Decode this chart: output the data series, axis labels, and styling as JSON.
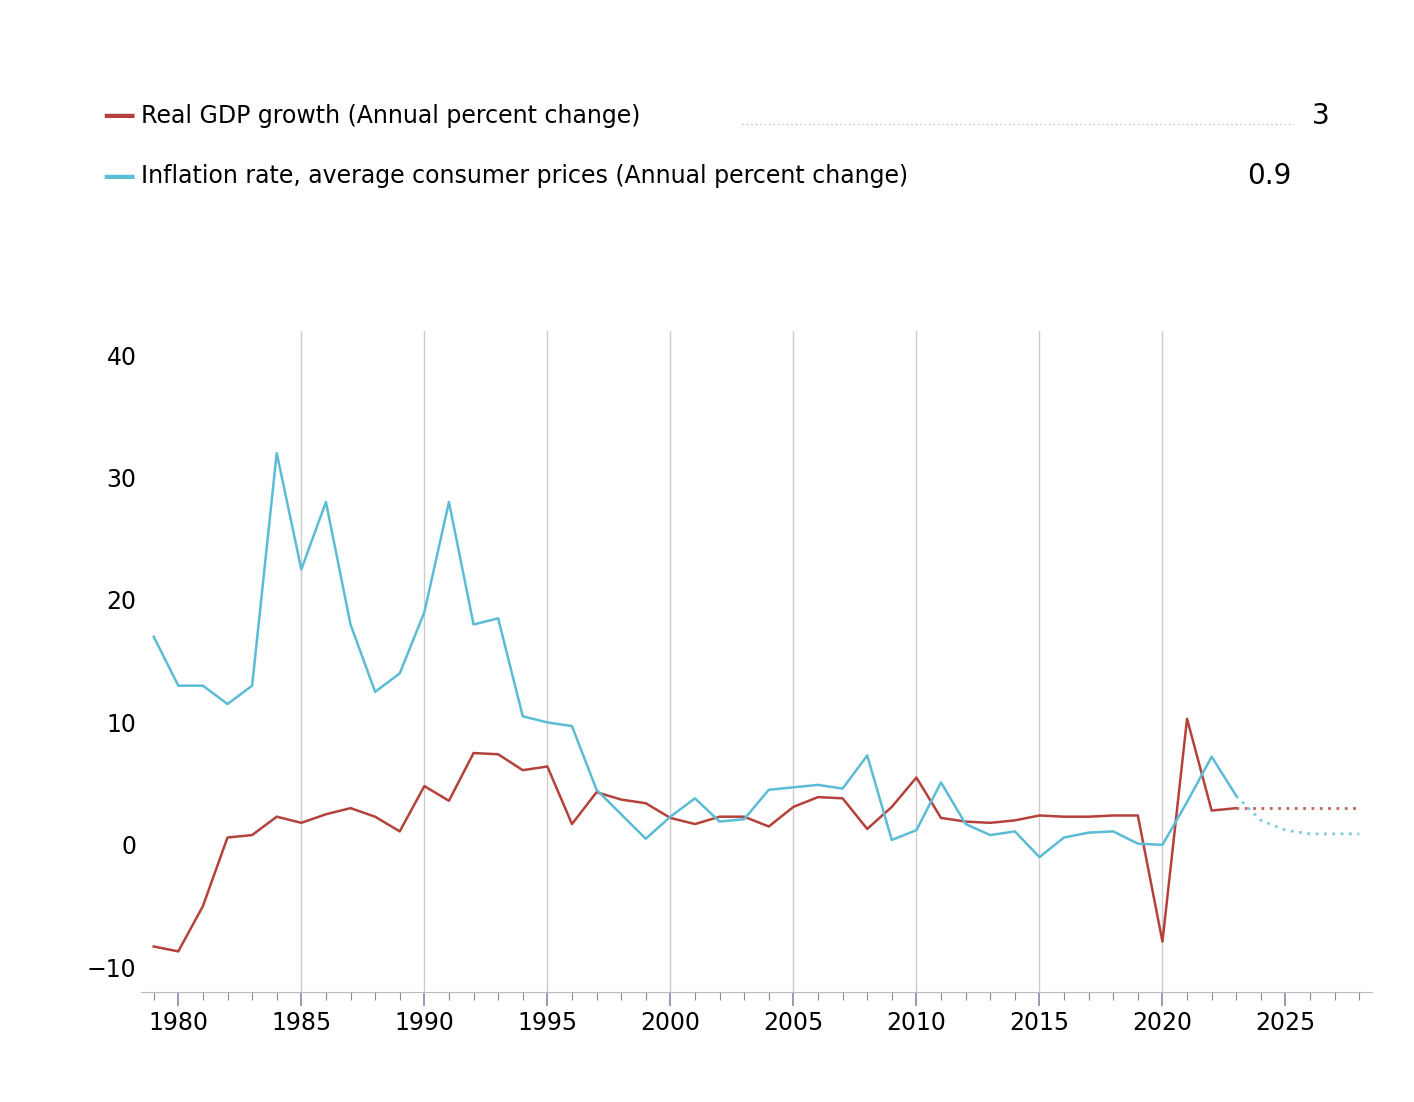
{
  "gdp_years": [
    1979,
    1980,
    1981,
    1982,
    1983,
    1984,
    1985,
    1986,
    1987,
    1988,
    1989,
    1990,
    1991,
    1992,
    1993,
    1994,
    1995,
    1996,
    1997,
    1998,
    1999,
    2000,
    2001,
    2002,
    2003,
    2004,
    2005,
    2006,
    2007,
    2008,
    2009,
    2010,
    2011,
    2012,
    2013,
    2014,
    2015,
    2016,
    2017,
    2018,
    2019,
    2020,
    2021,
    2022,
    2023
  ],
  "gdp_values": [
    -8.3,
    -8.7,
    -5.0,
    0.6,
    0.8,
    2.3,
    1.8,
    2.5,
    3.0,
    2.3,
    1.1,
    4.8,
    3.6,
    7.5,
    7.4,
    6.1,
    6.4,
    1.7,
    4.3,
    3.7,
    3.4,
    2.2,
    1.7,
    2.3,
    2.3,
    1.5,
    3.1,
    3.9,
    3.8,
    1.3,
    3.1,
    5.5,
    2.2,
    1.9,
    1.8,
    2.0,
    2.4,
    2.3,
    2.3,
    2.4,
    2.4,
    -7.9,
    10.3,
    2.8,
    3.0
  ],
  "gdp_forecast_years": [
    2023,
    2024,
    2025,
    2026,
    2027,
    2028
  ],
  "gdp_forecast_values": [
    3.0,
    3.0,
    3.0,
    3.0,
    3.0,
    3.0
  ],
  "inf_years": [
    1979,
    1980,
    1981,
    1982,
    1983,
    1984,
    1985,
    1986,
    1987,
    1988,
    1989,
    1990,
    1991,
    1992,
    1993,
    1994,
    1995,
    1996,
    1997,
    1998,
    1999,
    2000,
    2001,
    2002,
    2003,
    2004,
    2005,
    2006,
    2007,
    2008,
    2009,
    2010,
    2011,
    2012,
    2013,
    2014,
    2015,
    2016,
    2017,
    2018,
    2019,
    2020,
    2021,
    2022,
    2023
  ],
  "inf_values": [
    17.0,
    13.0,
    13.0,
    11.5,
    13.0,
    32.0,
    22.5,
    28.0,
    18.0,
    12.5,
    14.0,
    19.0,
    28.0,
    18.0,
    18.5,
    10.5,
    10.0,
    9.7,
    4.5,
    2.5,
    0.5,
    2.3,
    3.8,
    1.9,
    2.1,
    4.5,
    4.7,
    4.9,
    4.6,
    7.3,
    0.4,
    1.2,
    5.1,
    1.7,
    0.8,
    1.1,
    -1.0,
    0.6,
    1.0,
    1.1,
    0.1,
    0.0,
    3.5,
    7.2,
    4.0
  ],
  "inf_forecast_years": [
    2023,
    2024,
    2025,
    2026,
    2027,
    2028
  ],
  "inf_forecast_values": [
    4.0,
    2.0,
    1.2,
    0.9,
    0.9,
    0.9
  ],
  "gdp_color": "#b5413b",
  "inf_color": "#5bbcd6",
  "forecast_dotted_color_gdp": "#c0655e",
  "forecast_dotted_color_inf": "#7ecae0",
  "vline_color": "#cccccc",
  "vline_years": [
    1985,
    1990,
    1995,
    2000,
    2005,
    2010,
    2015,
    2020
  ],
  "legend_label_gdp": "Real GDP growth (Annual percent change)",
  "legend_label_inf": "Inflation rate, average consumer prices (Annual percent change)",
  "legend_value_gdp": "3",
  "legend_value_inf": "0.9",
  "ylim": [
    -12,
    42
  ],
  "yticks": [
    -10,
    0,
    10,
    20,
    30,
    40
  ],
  "xlim": [
    1978.5,
    2028.5
  ],
  "xticks": [
    1980,
    1985,
    1990,
    1995,
    2000,
    2005,
    2010,
    2015,
    2020,
    2025
  ],
  "background_color": "#ffffff",
  "fontsize_legend": 17,
  "fontsize_axis": 17,
  "fontsize_legend_value": 20
}
